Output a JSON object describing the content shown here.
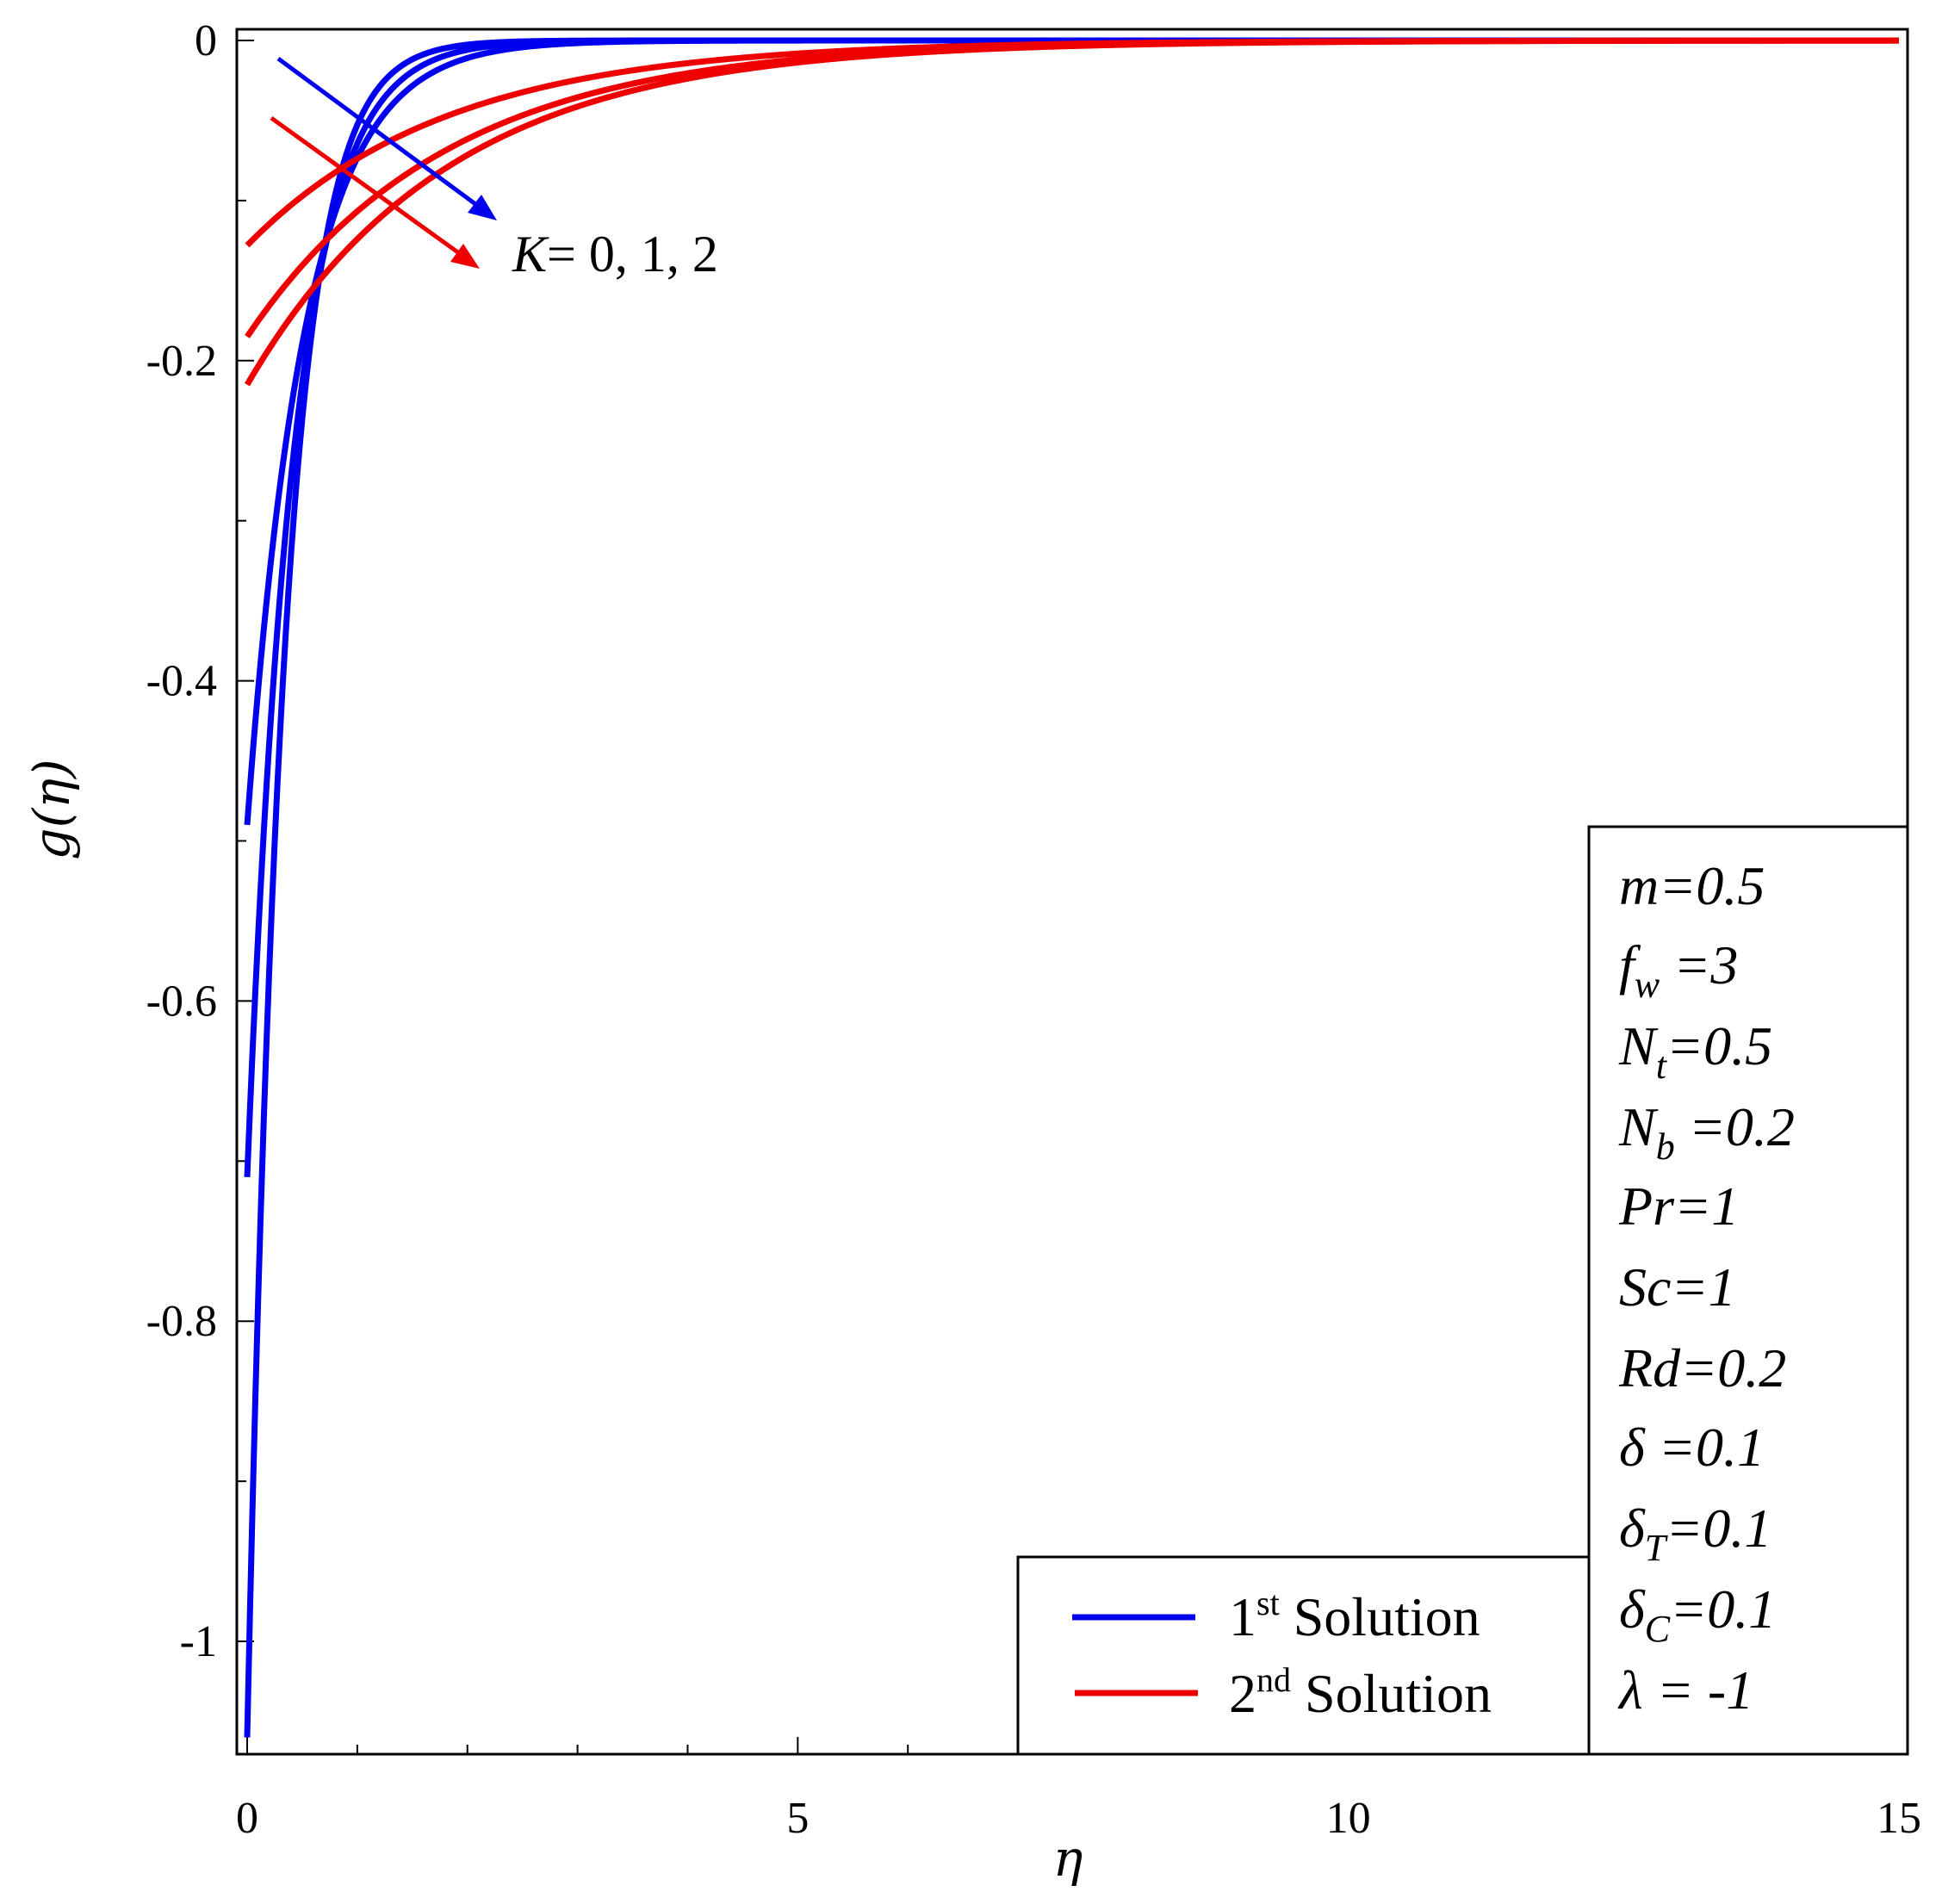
{
  "chart_data": {
    "type": "line",
    "xlabel": "η",
    "ylabel": "g(η)",
    "xlim": [
      0,
      15
    ],
    "ylim": [
      -1.07,
      0
    ],
    "x_ticks": [
      "0",
      "5",
      "10",
      "15"
    ],
    "y_ticks": [
      "0",
      "-0.2",
      "-0.4",
      "-0.6",
      "-0.8",
      "-1"
    ],
    "grid": false,
    "legend_position": "bottom-right",
    "legend": [
      {
        "prefix": "1",
        "sup": "st",
        "text": " Solution",
        "color": "#0000ee"
      },
      {
        "prefix": "2",
        "sup": "nd",
        "text": " Solution",
        "color": "#ee0000"
      }
    ],
    "annotation": {
      "var": "K",
      "text": "= 0, 1, 2"
    },
    "parameters": {
      "m": "m=0.5",
      "fw": {
        "base": "f",
        "sub": "w",
        "rest": " =3"
      },
      "Nt": {
        "base": "N",
        "sub": "t",
        "rest": "=0.5"
      },
      "Nb": {
        "base": "N",
        "sub": "b",
        "rest": " =0.2"
      },
      "Pr": "Pr=1",
      "Sc": "Sc=1",
      "Rd": "Rd=0.2",
      "delta": "δ =0.1",
      "deltaT": {
        "base": "δ",
        "sub": "T",
        "rest": "=0.1"
      },
      "deltaC": {
        "base": "δ",
        "sub": "C",
        "rest": "=0.1"
      },
      "lambda": "λ  = -1"
    },
    "series": [
      {
        "group": "1st",
        "K": 0,
        "color": "#0000ee",
        "g0": -1.06,
        "decay": 3.0,
        "points": [
          [
            0,
            -1.06
          ],
          [
            0.25,
            -0.5
          ],
          [
            0.5,
            -0.236
          ],
          [
            0.75,
            -0.112
          ],
          [
            1,
            -0.053
          ],
          [
            1.5,
            -0.012
          ],
          [
            2,
            -0.0026
          ],
          [
            3,
            -0.0001
          ],
          [
            15,
            0
          ]
        ]
      },
      {
        "group": "1st",
        "K": 1,
        "color": "#0000ee",
        "g0": -0.71,
        "decay": 2.4,
        "points": [
          [
            0,
            -0.71
          ],
          [
            0.25,
            -0.389
          ],
          [
            0.5,
            -0.214
          ],
          [
            0.75,
            -0.117
          ],
          [
            1,
            -0.064
          ],
          [
            1.5,
            -0.019
          ],
          [
            2,
            -0.0058
          ],
          [
            3,
            -0.0005
          ],
          [
            15,
            0
          ]
        ]
      },
      {
        "group": "1st",
        "K": 2,
        "color": "#0000ee",
        "g0": -0.49,
        "decay": 1.9,
        "points": [
          [
            0,
            -0.49
          ],
          [
            0.25,
            -0.304
          ],
          [
            0.5,
            -0.189
          ],
          [
            0.75,
            -0.118
          ],
          [
            1,
            -0.073
          ],
          [
            1.5,
            -0.028
          ],
          [
            2,
            -0.011
          ],
          [
            3,
            -0.0016
          ],
          [
            4,
            -0.0002
          ],
          [
            15,
            0
          ]
        ]
      },
      {
        "group": "2nd",
        "K": 0,
        "color": "#ee0000",
        "g0": -0.128,
        "decay": 0.55,
        "points": [
          [
            0,
            -0.128
          ],
          [
            1,
            -0.074
          ],
          [
            2,
            -0.043
          ],
          [
            3,
            -0.025
          ],
          [
            4,
            -0.014
          ],
          [
            6,
            -0.0047
          ],
          [
            8,
            -0.0016
          ],
          [
            10,
            -0.0005
          ],
          [
            15,
            0
          ]
        ]
      },
      {
        "group": "2nd",
        "K": 1,
        "color": "#ee0000",
        "g0": -0.185,
        "decay": 0.55,
        "points": [
          [
            0,
            -0.185
          ],
          [
            1,
            -0.107
          ],
          [
            2,
            -0.062
          ],
          [
            3,
            -0.036
          ],
          [
            4,
            -0.02
          ],
          [
            6,
            -0.0068
          ],
          [
            8,
            -0.0023
          ],
          [
            10,
            -0.0008
          ],
          [
            15,
            0
          ]
        ]
      },
      {
        "group": "2nd",
        "K": 2,
        "color": "#ee0000",
        "g0": -0.215,
        "decay": 0.55,
        "points": [
          [
            0,
            -0.215
          ],
          [
            1,
            -0.124
          ],
          [
            2,
            -0.072
          ],
          [
            3,
            -0.041
          ],
          [
            4,
            -0.024
          ],
          [
            6,
            -0.0079
          ],
          [
            8,
            -0.0026
          ],
          [
            10,
            -0.0009
          ],
          [
            15,
            0
          ]
        ]
      }
    ]
  }
}
